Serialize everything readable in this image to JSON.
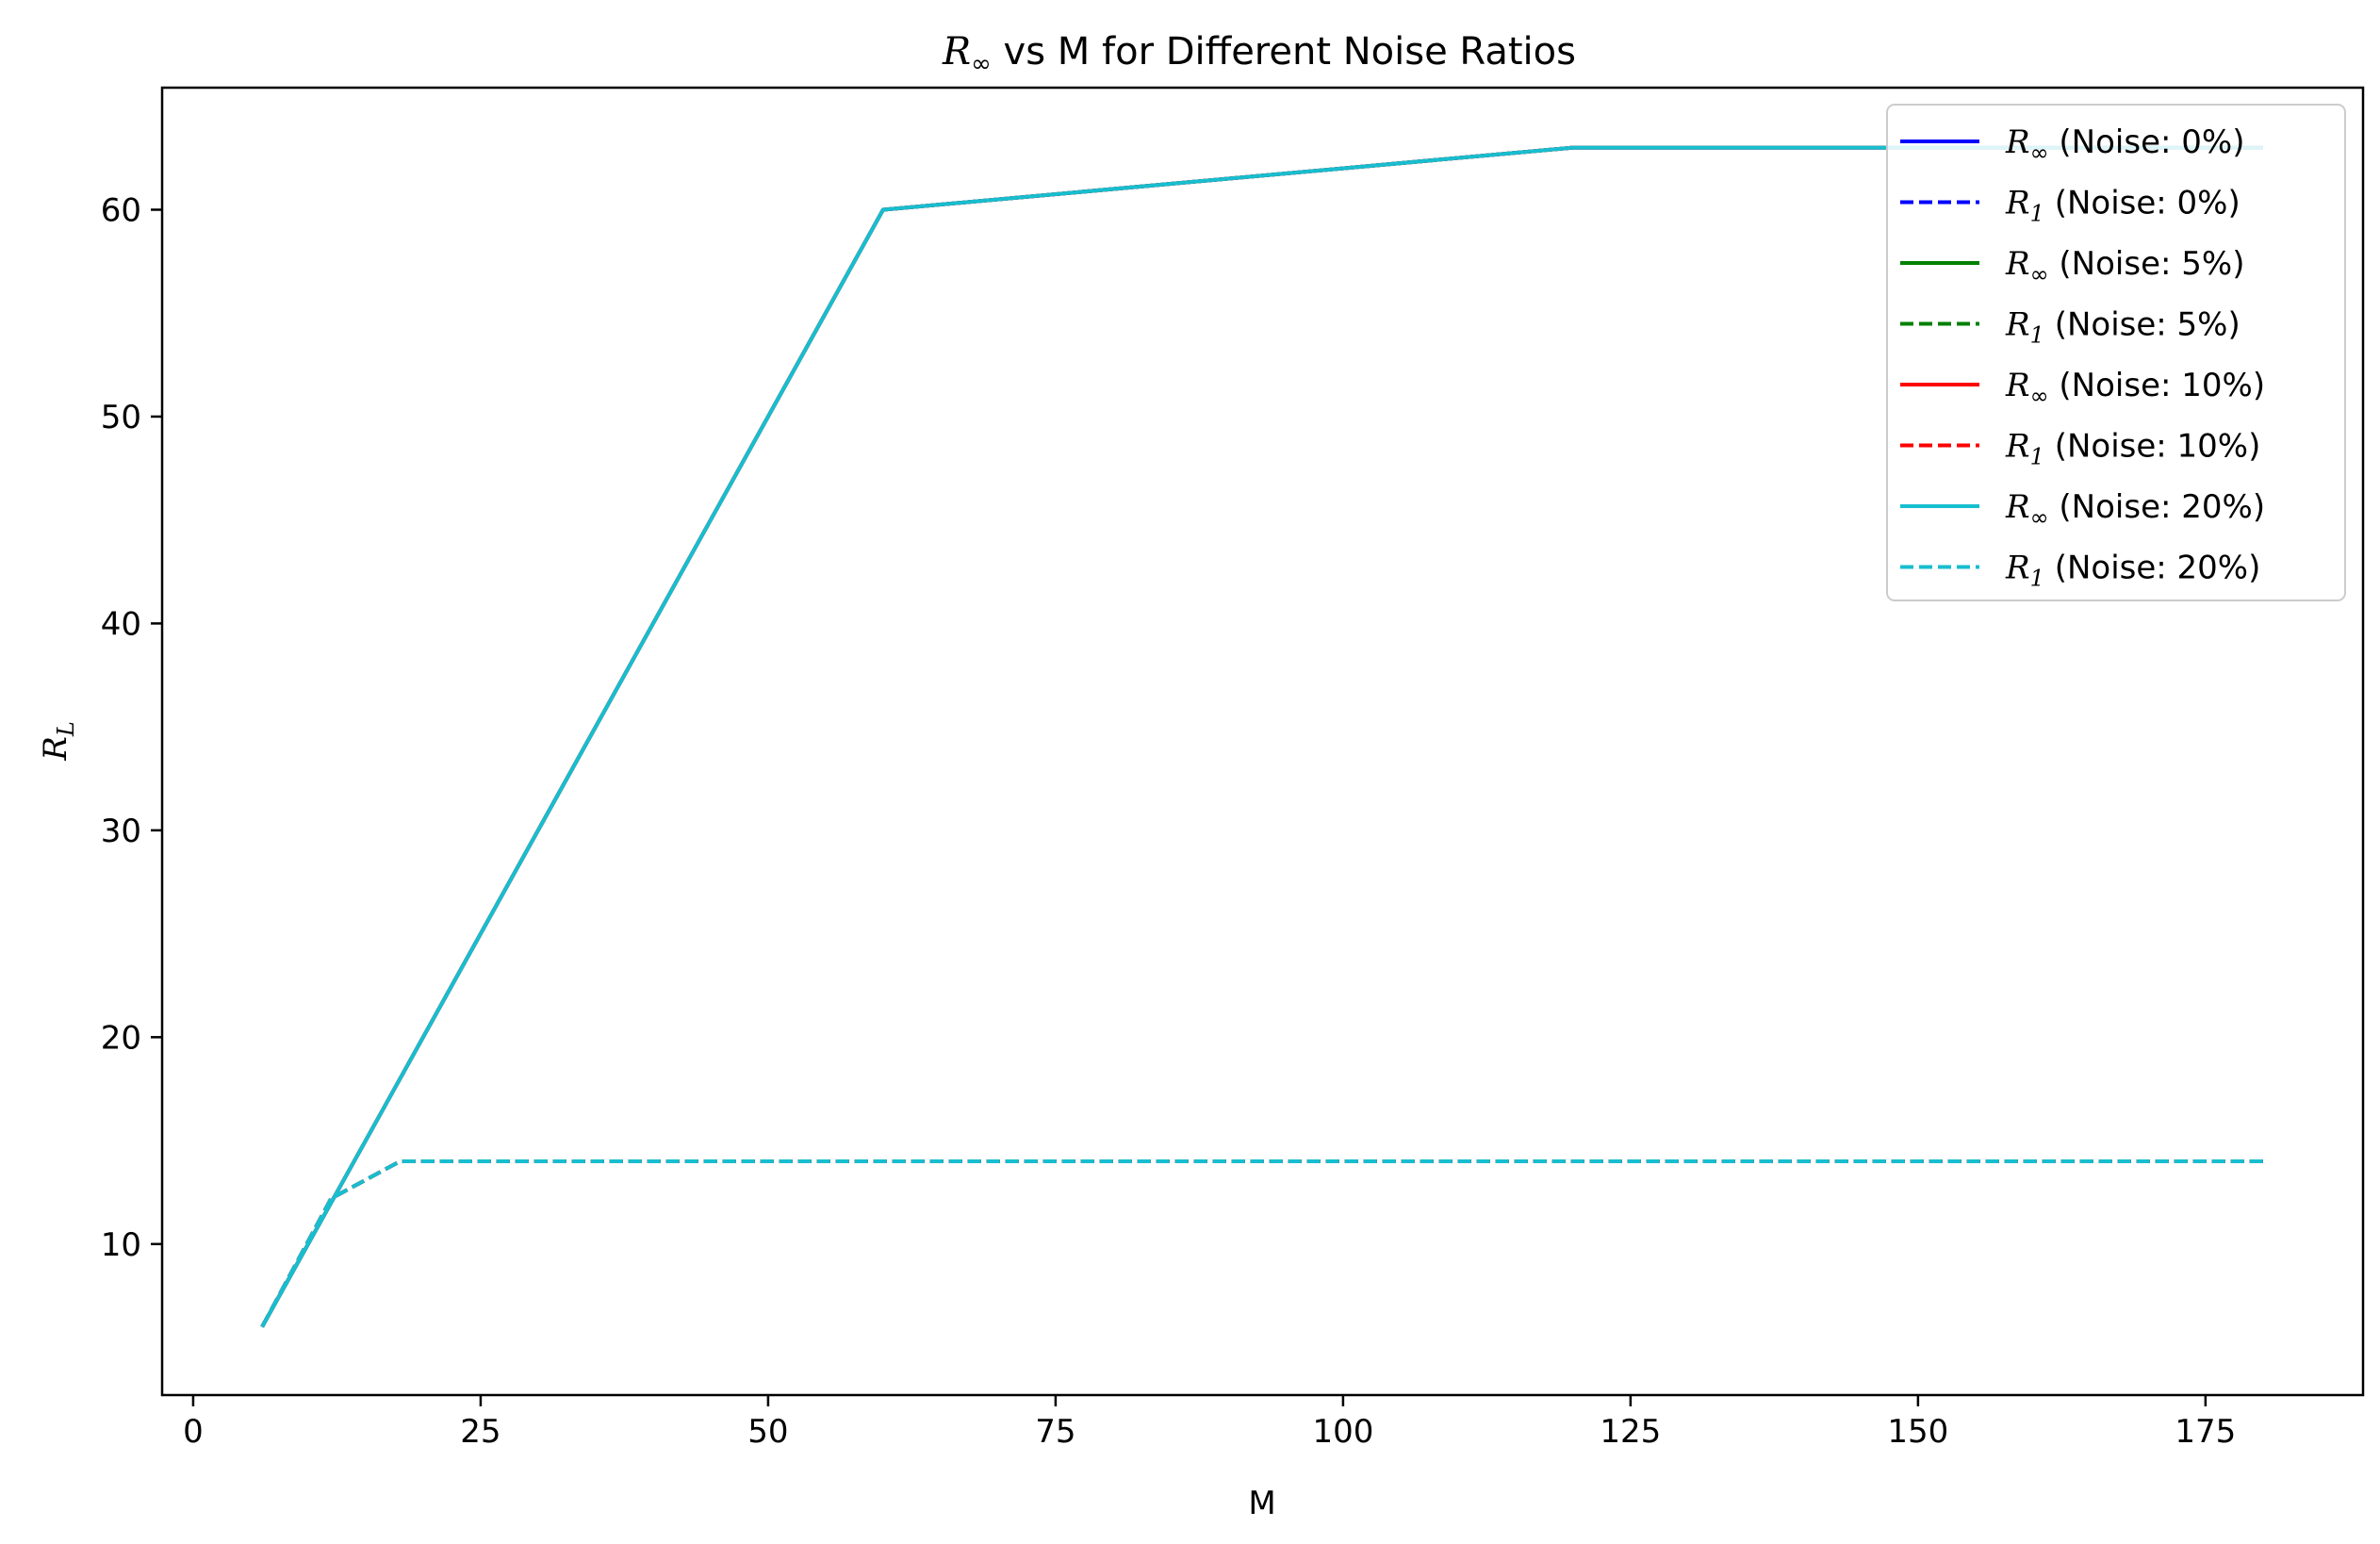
{
  "chart_data": {
    "type": "line",
    "title": {
      "symbol": "R",
      "subscript": "∞",
      "rest": " vs M for Different Noise Ratios"
    },
    "xlabel": "M",
    "ylabel": {
      "symbol": "R",
      "subscript": "L"
    },
    "xlim": [
      -2.7,
      188.7
    ],
    "ylim": [
      2.7,
      65.9
    ],
    "xticks": [
      0,
      25,
      50,
      75,
      100,
      125,
      150,
      175
    ],
    "yticks": [
      10,
      20,
      30,
      40,
      50,
      60
    ],
    "grid": false,
    "legend_position": "top-right",
    "series": [
      {
        "name": "R∞ (Noise: 0%)",
        "symbol": "R",
        "subscript": "∞",
        "noise": "(Noise: 0%)",
        "color": "#0000ff",
        "dashed": false,
        "x": [
          6,
          12,
          18,
          60,
          120,
          180
        ],
        "y": [
          6,
          12,
          18,
          60,
          63,
          63
        ]
      },
      {
        "name": "R1 (Noise: 0%)",
        "symbol": "R",
        "subscript": "1",
        "noise": "(Noise: 0%)",
        "color": "#0000ff",
        "dashed": true,
        "x": [
          6,
          12,
          18,
          60,
          120,
          180
        ],
        "y": [
          6,
          12.2,
          14,
          14,
          14,
          14
        ]
      },
      {
        "name": "R∞ (Noise: 5%)",
        "symbol": "R",
        "subscript": "∞",
        "noise": "(Noise: 5%)",
        "color": "#008000",
        "dashed": false,
        "x": [
          6,
          12,
          18,
          60,
          120,
          180
        ],
        "y": [
          6,
          12,
          18,
          60,
          63,
          63
        ]
      },
      {
        "name": "R1 (Noise: 5%)",
        "symbol": "R",
        "subscript": "1",
        "noise": "(Noise: 5%)",
        "color": "#008000",
        "dashed": true,
        "x": [
          6,
          12,
          18,
          60,
          120,
          180
        ],
        "y": [
          6,
          12.2,
          14,
          14,
          14,
          14
        ]
      },
      {
        "name": "R∞ (Noise: 10%)",
        "symbol": "R",
        "subscript": "∞",
        "noise": "(Noise: 10%)",
        "color": "#ff0000",
        "dashed": false,
        "x": [
          6,
          12,
          18,
          60,
          120,
          180
        ],
        "y": [
          6,
          12,
          18,
          60,
          63,
          63
        ]
      },
      {
        "name": "R1 (Noise: 10%)",
        "symbol": "R",
        "subscript": "1",
        "noise": "(Noise: 10%)",
        "color": "#ff0000",
        "dashed": true,
        "x": [
          6,
          12,
          18,
          60,
          120,
          180
        ],
        "y": [
          6,
          12.2,
          14,
          14,
          14,
          14
        ]
      },
      {
        "name": "R∞ (Noise: 20%)",
        "symbol": "R",
        "subscript": "∞",
        "noise": "(Noise: 20%)",
        "color": "#17becf",
        "dashed": false,
        "x": [
          6,
          12,
          18,
          60,
          120,
          180
        ],
        "y": [
          6,
          12,
          18,
          60,
          63,
          63
        ]
      },
      {
        "name": "R1 (Noise: 20%)",
        "symbol": "R",
        "subscript": "1",
        "noise": "(Noise: 20%)",
        "color": "#17becf",
        "dashed": true,
        "x": [
          6,
          12,
          18,
          60,
          120,
          180
        ],
        "y": [
          6,
          12.2,
          14,
          14,
          14,
          14
        ]
      }
    ]
  }
}
